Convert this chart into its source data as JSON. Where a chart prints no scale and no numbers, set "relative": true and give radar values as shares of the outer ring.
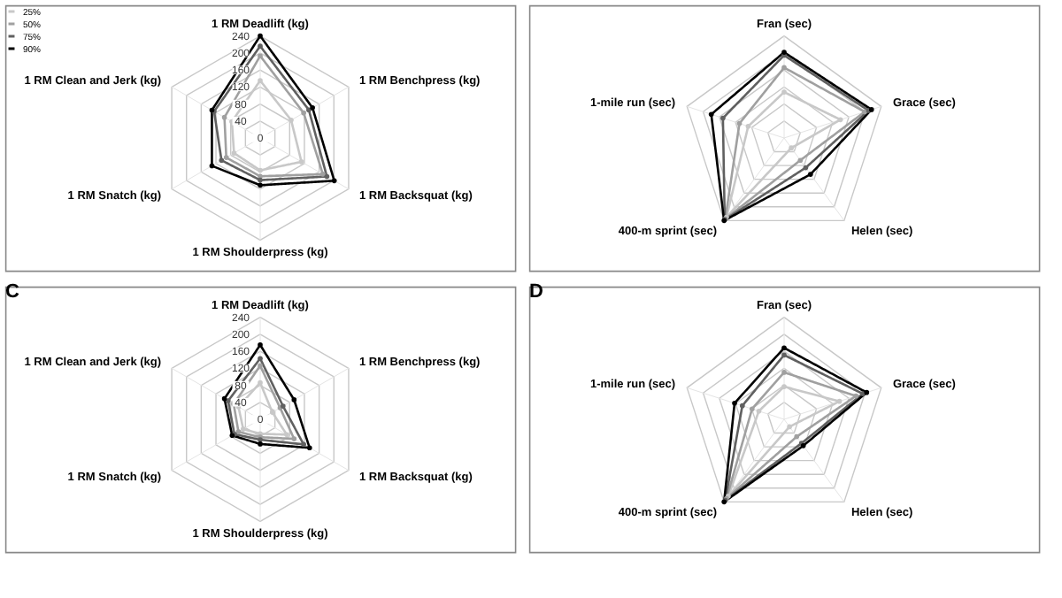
{
  "chart_data": [
    {
      "type": "radar",
      "categories": [
        "1 RM Deadlift (kg)",
        "1 RM Benchpress (kg)",
        "1 RM Backsquat (kg)",
        "1 RM Shoulderpress (kg)",
        "1 RM Snatch (kg)",
        "1 RM Clean and Jerk (kg)"
      ],
      "ylim": [
        0,
        240
      ],
      "yticks": [
        0,
        40,
        80,
        120,
        160,
        200,
        240
      ],
      "grid": true,
      "marker": "circle",
      "legend": "top left",
      "series": [
        {
          "name": "25%",
          "color": "#c8c8c8",
          "values": [
            135,
            84,
            112,
            76,
            71,
            77
          ]
        },
        {
          "name": "50%",
          "color": "#a0a0a0",
          "values": [
            193,
            118,
            170,
            90,
            92,
            97
          ]
        },
        {
          "name": "75%",
          "color": "#606060",
          "values": [
            216,
            132,
            181,
            99,
            105,
            125
          ]
        },
        {
          "name": "90%",
          "color": "#000000",
          "values": [
            240,
            142,
            201,
            111,
            131,
            131
          ]
        }
      ]
    },
    {
      "type": "radar",
      "relative": true,
      "categories": [
        "Fran (sec)",
        "Grace (sec)",
        "Helen (sec)",
        "400-m sprint (sec)",
        "1-mile run (sec)"
      ],
      "grid": true,
      "marker": "circle",
      "series": [
        {
          "color": "#c8c8c8",
          "values": [
            0.45,
            0.58,
            0.12,
            0.96,
            0.37
          ]
        },
        {
          "color": "#a0a0a0",
          "values": [
            0.69,
            0.83,
            0.27,
            0.98,
            0.46
          ]
        },
        {
          "color": "#606060",
          "values": [
            0.81,
            0.87,
            0.36,
            0.99,
            0.63
          ]
        },
        {
          "color": "#000000",
          "values": [
            0.84,
            0.9,
            0.44,
            1.0,
            0.75
          ]
        }
      ]
    },
    {
      "type": "radar",
      "title": "C",
      "categories": [
        "1 RM Deadlift (kg)",
        "1 RM Benchpress (kg)",
        "1 RM Backsquat (kg)",
        "1 RM Shoulderpress (kg)",
        "1 RM Snatch (kg)",
        "1 RM Clean and Jerk (kg)"
      ],
      "ylim": [
        0,
        240
      ],
      "yticks": [
        0,
        40,
        80,
        120,
        160,
        200,
        240
      ],
      "grid": true,
      "marker": "circle",
      "series": [
        {
          "color": "#c8c8c8",
          "values": [
            86,
            33,
            72,
            34,
            46,
            59
          ]
        },
        {
          "color": "#a0a0a0",
          "values": [
            126,
            54,
            92,
            42,
            59,
            72
          ]
        },
        {
          "color": "#606060",
          "values": [
            143,
            62,
            118,
            48,
            70,
            87
          ]
        },
        {
          "color": "#000000",
          "values": [
            175,
            92,
            134,
            58,
            76,
            97
          ]
        }
      ]
    },
    {
      "type": "radar",
      "title": "D",
      "relative": true,
      "categories": [
        "Fran (sec)",
        "Grace (sec)",
        "Helen (sec)",
        "400-m sprint (sec)",
        "1-mile run (sec)"
      ],
      "grid": true,
      "marker": "circle",
      "series": [
        {
          "color": "#c8c8c8",
          "values": [
            0.32,
            0.57,
            0.09,
            0.93,
            0.26
          ]
        },
        {
          "color": "#a0a0a0",
          "values": [
            0.46,
            0.74,
            0.21,
            0.96,
            0.33
          ]
        },
        {
          "color": "#606060",
          "values": [
            0.63,
            0.81,
            0.29,
            0.98,
            0.43
          ]
        },
        {
          "color": "#000000",
          "values": [
            0.7,
            0.85,
            0.32,
            1.0,
            0.51
          ]
        }
      ]
    }
  ]
}
